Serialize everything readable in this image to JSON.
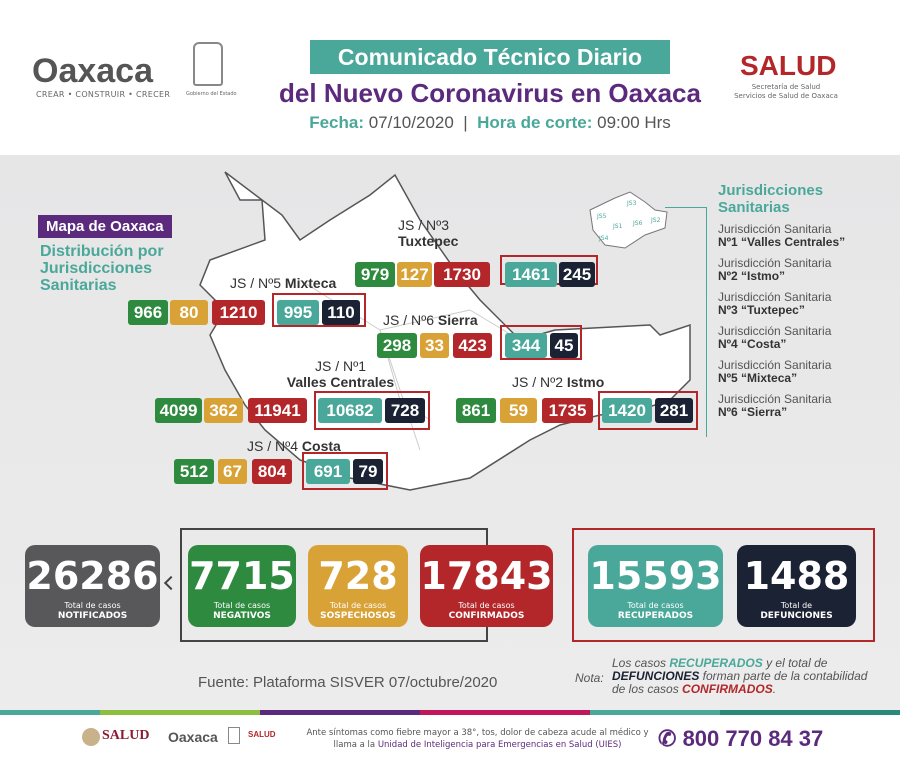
{
  "header": {
    "oaxaca_logo": "Oaxaca",
    "oaxaca_tagline": "CREAR • CONSTRUIR • CRECER",
    "seal_caption": "Gobierno del Estado",
    "title_line1": "Comunicado Técnico Diario",
    "title_line2": "del Nuevo Coronavirus en Oaxaca",
    "fecha_label": "Fecha:",
    "fecha": "07/10/2020",
    "hora_label": "Hora de corte:",
    "hora": "09:00 Hrs",
    "salud_logo": "SALUD",
    "salud_sub1": "Secretaría de Salud",
    "salud_sub2": "Servicios de Salud de Oaxaca"
  },
  "colors": {
    "negativos": "#2e8a3e",
    "sospechosos": "#d9a236",
    "confirmados": "#b3272a",
    "recuperados": "#4aa89a",
    "defunciones": "#1b2233",
    "notificados": "#58585a",
    "purple": "#5c2a7d"
  },
  "map": {
    "title": "Mapa de Oaxaca",
    "subtitle": "Distribución por Jurisdicciones Sanitarias",
    "regions": [
      {
        "js": "JS / Nº3",
        "name": "Tuxtepec",
        "negativos": 979,
        "sospechosos": 127,
        "confirmados": 1730,
        "recuperados": 1461,
        "defunciones": 245
      },
      {
        "js": "JS / Nº5",
        "name": "Mixteca",
        "negativos": 966,
        "sospechosos": 80,
        "confirmados": 1210,
        "recuperados": 995,
        "defunciones": 110
      },
      {
        "js": "JS / Nº6",
        "name": "Sierra",
        "negativos": 298,
        "sospechosos": 33,
        "confirmados": 423,
        "recuperados": 344,
        "defunciones": 45
      },
      {
        "js": "JS / Nº1",
        "name": "Valles Centrales",
        "negativos": 4099,
        "sospechosos": 362,
        "confirmados": 11941,
        "recuperados": 10682,
        "defunciones": 728
      },
      {
        "js": "JS / Nº2",
        "name": "Istmo",
        "negativos": 861,
        "sospechosos": 59,
        "confirmados": 1735,
        "recuperados": 1420,
        "defunciones": 281
      },
      {
        "js": "JS / Nº4",
        "name": "Costa",
        "negativos": 512,
        "sospechosos": 67,
        "confirmados": 804,
        "recuperados": 691,
        "defunciones": 79
      }
    ],
    "mini_map_labels": [
      "JS5",
      "JS3",
      "JS1",
      "JS6",
      "JS2",
      "JS4"
    ]
  },
  "legend": {
    "title": "Jurisdicciones Sanitarias",
    "items": [
      {
        "line1": "Jurisdicción Sanitaria",
        "line2": "Nº1 “Valles Centrales”"
      },
      {
        "line1": "Jurisdicción Sanitaria",
        "line2": "Nº2 “Istmo”"
      },
      {
        "line1": "Jurisdicción Sanitaria",
        "line2": "Nº3 “Tuxtepec”"
      },
      {
        "line1": "Jurisdicción Sanitaria",
        "line2": "Nº4 “Costa”"
      },
      {
        "line1": "Jurisdicción Sanitaria",
        "line2": "Nº5 “Mixteca”"
      },
      {
        "line1": "Jurisdicción Sanitaria",
        "line2": "Nº6 “Sierra”"
      }
    ]
  },
  "totals": [
    {
      "key": "notificados",
      "value": "26286",
      "sub": "Total de casos",
      "label": "NOTIFICADOS"
    },
    {
      "key": "negativos",
      "value": "7715",
      "sub": "Total de casos",
      "label": "NEGATIVOS"
    },
    {
      "key": "sospechosos",
      "value": "728",
      "sub": "Total de casos",
      "label": "SOSPECHOSOS"
    },
    {
      "key": "confirmados",
      "value": "17843",
      "sub": "Total de casos",
      "label": "CONFIRMADOS"
    },
    {
      "key": "recuperados",
      "value": "15593",
      "sub": "Total de casos",
      "label": "RECUPERADOS"
    },
    {
      "key": "defunciones",
      "value": "1488",
      "sub": "Total de",
      "label": "DEFUNCIONES"
    }
  ],
  "fuente": "Fuente: Plataforma SISVER 07/octubre/2020",
  "nota": {
    "label": "Nota:",
    "p1": "Los casos ",
    "recuperados": "RECUPERADOS",
    "p2": " y el total de ",
    "defunciones": "DEFUNCIONES",
    "p3": " forman parte de la contabilidad de los casos ",
    "confirmados": "CONFIRMADOS",
    "p4": "."
  },
  "footer": {
    "salud": "SALUD",
    "oaxaca": "Oaxaca",
    "salud_small": "SALUD",
    "text1": "Ante síntomas como fiebre mayor a 38°, tos, dolor de cabeza acude al médico y llama a la ",
    "text_link": "Unidad de Inteligencia para Emergencias en Salud (UIES)",
    "phone": "800 770 84 37"
  }
}
